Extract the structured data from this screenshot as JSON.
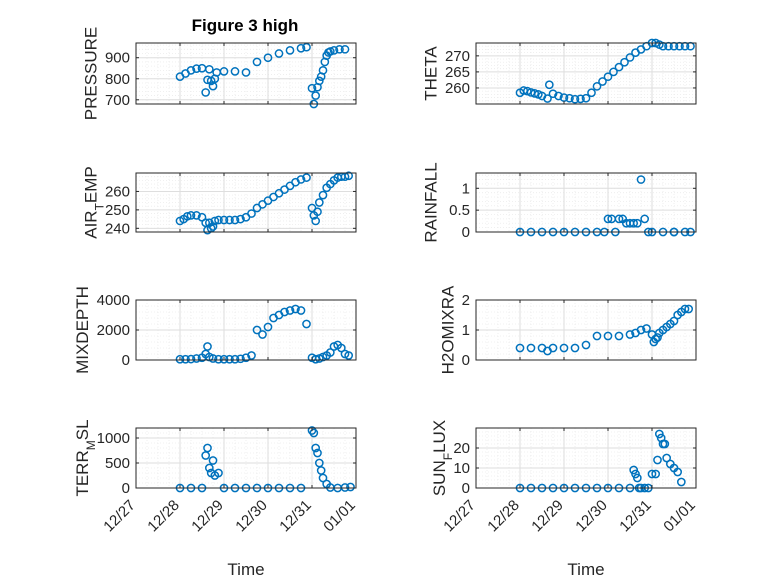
{
  "title": "Figure 3 high",
  "colors": {
    "marker": "#0072BD",
    "axis": "#262626",
    "grid": "#dedede",
    "minor_grid": "#ececec"
  },
  "chart_data": [
    {
      "type": "scatter",
      "marker": "o",
      "grid": true,
      "title": "Figure 3 high",
      "ylabel": "PRESSURE",
      "xlabel": "",
      "ylim": [
        680,
        970
      ],
      "yticks": [
        700,
        800,
        900
      ],
      "x": [
        "12/28 00:00",
        "12/28 03:00",
        "12/28 06:00",
        "12/28 09:00",
        "12/28 12:00",
        "12/28 14:00",
        "12/28 15:00",
        "12/28 16:00",
        "12/28 17:00",
        "12/28 18:00",
        "12/28 19:00",
        "12/28 20:00",
        "12/29 00:00",
        "12/29 06:00",
        "12/29 12:00",
        "12/29 18:00",
        "12/30 00:00",
        "12/30 06:00",
        "12/30 12:00",
        "12/30 18:00",
        "12/30 21:00",
        "12/31 00:00",
        "12/31 01:00",
        "12/31 02:00",
        "12/31 03:00",
        "12/31 04:00",
        "12/31 05:00",
        "12/31 06:00",
        "12/31 07:00",
        "12/31 08:00",
        "12/31 09:00",
        "12/31 10:00",
        "12/31 12:00",
        "12/31 15:00",
        "12/31 18:00"
      ],
      "y": [
        810,
        825,
        840,
        848,
        850,
        735,
        795,
        845,
        790,
        765,
        800,
        830,
        835,
        835,
        830,
        880,
        900,
        920,
        935,
        945,
        950,
        755,
        680,
        720,
        760,
        790,
        810,
        840,
        880,
        910,
        925,
        930,
        935,
        940,
        940
      ]
    },
    {
      "type": "scatter",
      "marker": "o",
      "grid": true,
      "title": "",
      "ylabel": "THETA",
      "xlabel": "",
      "ylim": [
        255,
        274
      ],
      "yticks": [
        260,
        265,
        270
      ],
      "x": [
        "12/28 00:00",
        "12/28 02:00",
        "12/28 04:00",
        "12/28 06:00",
        "12/28 08:00",
        "12/28 10:00",
        "12/28 12:00",
        "12/28 15:00",
        "12/28 16:00",
        "12/28 18:00",
        "12/28 21:00",
        "12/29 00:00",
        "12/29 03:00",
        "12/29 06:00",
        "12/29 09:00",
        "12/29 12:00",
        "12/29 15:00",
        "12/29 18:00",
        "12/29 21:00",
        "12/30 00:00",
        "12/30 03:00",
        "12/30 06:00",
        "12/30 09:00",
        "12/30 12:00",
        "12/30 15:00",
        "12/30 18:00",
        "12/30 21:00",
        "12/31 00:00",
        "12/31 02:00",
        "12/31 04:00",
        "12/31 06:00",
        "12/31 09:00",
        "12/31 12:00",
        "12/31 15:00",
        "12/31 18:00",
        "12/31 21:00"
      ],
      "y": [
        258.5,
        259.2,
        259,
        258.6,
        258.3,
        258,
        257.5,
        256.7,
        261,
        258.2,
        257.5,
        257,
        256.8,
        256.5,
        256.6,
        256.8,
        258.5,
        260.5,
        262,
        263.5,
        265,
        266.5,
        268,
        269.5,
        271,
        272,
        273,
        274,
        274,
        273.5,
        273,
        273,
        273,
        273,
        273,
        273
      ]
    },
    {
      "type": "scatter",
      "marker": "o",
      "grid": true,
      "title": "",
      "ylabel": "AIR_TEMP",
      "xlabel": "",
      "ylim": [
        238,
        270
      ],
      "yticks": [
        240,
        250,
        260
      ],
      "x": [
        "12/28 00:00",
        "12/28 02:00",
        "12/28 04:00",
        "12/28 06:00",
        "12/28 09:00",
        "12/28 12:00",
        "12/28 14:00",
        "12/28 15:00",
        "12/28 16:00",
        "12/28 17:00",
        "12/28 18:00",
        "12/28 19:00",
        "12/28 21:00",
        "12/29 00:00",
        "12/29 03:00",
        "12/29 06:00",
        "12/29 09:00",
        "12/29 12:00",
        "12/29 15:00",
        "12/29 18:00",
        "12/29 21:00",
        "12/30 00:00",
        "12/30 03:00",
        "12/30 06:00",
        "12/30 09:00",
        "12/30 12:00",
        "12/30 15:00",
        "12/30 18:00",
        "12/30 21:00",
        "12/31 00:00",
        "12/31 01:00",
        "12/31 02:00",
        "12/31 03:00",
        "12/31 04:00",
        "12/31 06:00",
        "12/31 08:00",
        "12/31 10:00",
        "12/31 12:00",
        "12/31 14:00",
        "12/31 16:00",
        "12/31 18:00",
        "12/31 20:00"
      ],
      "y": [
        244,
        245,
        246.5,
        247,
        247,
        246,
        243,
        239,
        243,
        240,
        241,
        244,
        244.5,
        244.5,
        244.5,
        244.5,
        245,
        246,
        248,
        251,
        253,
        255,
        257,
        259,
        261,
        263,
        265,
        266.5,
        267.5,
        251,
        247,
        244,
        249,
        254,
        258,
        262,
        264,
        266,
        267.5,
        268,
        268,
        268.5
      ]
    },
    {
      "type": "scatter",
      "marker": "o",
      "grid": true,
      "title": "",
      "ylabel": "RAINFALL",
      "xlabel": "",
      "ylim": [
        0,
        1.35
      ],
      "yticks": [
        0,
        0.5,
        1
      ],
      "x": [
        "12/28 00:00",
        "12/28 06:00",
        "12/28 12:00",
        "12/28 18:00",
        "12/29 00:00",
        "12/29 06:00",
        "12/29 12:00",
        "12/29 18:00",
        "12/29 22:00",
        "12/30 00:00",
        "12/30 02:00",
        "12/30 04:00",
        "12/30 06:00",
        "12/30 08:00",
        "12/30 10:00",
        "12/30 12:00",
        "12/30 14:00",
        "12/30 16:00",
        "12/30 18:00",
        "12/30 20:00",
        "12/30 22:00",
        "12/31 00:00",
        "12/31 06:00",
        "12/31 12:00",
        "12/31 18:00",
        "12/31 21:00",
        "12/31 12:00"
      ],
      "y": [
        0,
        0,
        0,
        0,
        0,
        0,
        0,
        0,
        0,
        0.3,
        0.3,
        0,
        0.3,
        0.3,
        0.2,
        0.2,
        0.2,
        0.2,
        1.2,
        0.3,
        0,
        0,
        0,
        0,
        0,
        0,
        0
      ]
    },
    {
      "type": "scatter",
      "marker": "o",
      "grid": true,
      "title": "",
      "ylabel": "MIXDEPTH",
      "xlabel": "",
      "ylim": [
        0,
        4000
      ],
      "yticks": [
        0,
        2000,
        4000
      ],
      "x": [
        "12/28 00:00",
        "12/28 03:00",
        "12/28 06:00",
        "12/28 09:00",
        "12/28 12:00",
        "12/28 14:00",
        "12/28 15:00",
        "12/28 16:00",
        "12/28 18:00",
        "12/28 21:00",
        "12/29 00:00",
        "12/29 03:00",
        "12/29 06:00",
        "12/29 09:00",
        "12/29 12:00",
        "12/29 15:00",
        "12/29 18:00",
        "12/29 21:00",
        "12/30 00:00",
        "12/30 03:00",
        "12/30 06:00",
        "12/30 09:00",
        "12/30 12:00",
        "12/30 15:00",
        "12/30 18:00",
        "12/30 21:00",
        "12/31 00:00",
        "12/31 02:00",
        "12/31 04:00",
        "12/31 06:00",
        "12/31 08:00",
        "12/31 10:00",
        "12/31 12:00",
        "12/31 14:00",
        "12/31 16:00",
        "12/31 18:00",
        "12/31 20:00"
      ],
      "y": [
        50,
        50,
        60,
        100,
        150,
        400,
        900,
        200,
        100,
        50,
        50,
        50,
        50,
        80,
        150,
        300,
        2000,
        1700,
        2200,
        2800,
        3000,
        3200,
        3300,
        3400,
        3300,
        2400,
        150,
        50,
        100,
        200,
        300,
        500,
        900,
        1000,
        800,
        400,
        300
      ]
    },
    {
      "type": "scatter",
      "marker": "o",
      "grid": true,
      "title": "",
      "ylabel": "H2OMIXRA",
      "xlabel": "",
      "ylim": [
        0,
        2
      ],
      "yticks": [
        0,
        1,
        2
      ],
      "x": [
        "12/28 00:00",
        "12/28 06:00",
        "12/28 12:00",
        "12/28 15:00",
        "12/28 18:00",
        "12/29 00:00",
        "12/29 06:00",
        "12/29 12:00",
        "12/29 18:00",
        "12/30 00:00",
        "12/30 06:00",
        "12/30 12:00",
        "12/30 15:00",
        "12/30 18:00",
        "12/30 21:00",
        "12/31 00:00",
        "12/31 01:00",
        "12/31 02:00",
        "12/31 03:00",
        "12/31 04:00",
        "12/31 06:00",
        "12/31 08:00",
        "12/31 10:00",
        "12/31 12:00",
        "12/31 14:00",
        "12/31 16:00",
        "12/31 18:00",
        "12/31 20:00"
      ],
      "y": [
        0.4,
        0.4,
        0.4,
        0.3,
        0.4,
        0.4,
        0.4,
        0.5,
        0.8,
        0.8,
        0.8,
        0.85,
        0.9,
        1.0,
        1.05,
        0.85,
        0.6,
        0.7,
        0.75,
        0.9,
        1.0,
        1.1,
        1.2,
        1.3,
        1.5,
        1.6,
        1.7,
        1.7
      ]
    },
    {
      "type": "scatter",
      "marker": "o",
      "grid": true,
      "title": "",
      "ylabel": "TERR_MSL",
      "xlabel": "Time",
      "ylim": [
        0,
        1200
      ],
      "yticks": [
        0,
        500,
        1000
      ],
      "xticks": [
        "12/27",
        "12/28",
        "12/29",
        "12/30",
        "12/31",
        "01/01"
      ],
      "x": [
        "12/28 00:00",
        "12/28 06:00",
        "12/28 12:00",
        "12/28 14:00",
        "12/28 15:00",
        "12/28 16:00",
        "12/28 17:00",
        "12/28 18:00",
        "12/28 19:00",
        "12/28 21:00",
        "12/29 00:00",
        "12/29 06:00",
        "12/29 12:00",
        "12/29 18:00",
        "12/30 00:00",
        "12/30 06:00",
        "12/30 12:00",
        "12/30 18:00",
        "12/31 00:00",
        "12/31 01:00",
        "12/31 02:00",
        "12/31 03:00",
        "12/31 04:00",
        "12/31 05:00",
        "12/31 06:00",
        "12/31 08:00",
        "12/31 10:00",
        "12/31 14:00",
        "12/31 18:00",
        "12/31 21:00"
      ],
      "y": [
        0,
        0,
        0,
        650,
        800,
        400,
        300,
        550,
        250,
        300,
        0,
        0,
        0,
        0,
        0,
        0,
        0,
        0,
        1150,
        1100,
        800,
        700,
        500,
        350,
        200,
        80,
        10,
        0,
        10,
        20
      ]
    },
    {
      "type": "scatter",
      "marker": "o",
      "grid": true,
      "title": "",
      "ylabel": "SUN_FLUX",
      "xlabel": "Time",
      "ylim": [
        0,
        30
      ],
      "yticks": [
        0,
        10,
        20
      ],
      "xticks": [
        "12/27",
        "12/28",
        "12/29",
        "12/30",
        "12/31",
        "01/01"
      ],
      "x": [
        "12/28 00:00",
        "12/28 06:00",
        "12/28 12:00",
        "12/28 18:00",
        "12/29 00:00",
        "12/29 06:00",
        "12/29 12:00",
        "12/29 18:00",
        "12/30 00:00",
        "12/30 06:00",
        "12/30 12:00",
        "12/30 14:00",
        "12/30 15:00",
        "12/30 16:00",
        "12/30 17:00",
        "12/30 18:00",
        "12/30 20:00",
        "12/30 22:00",
        "12/31 00:00",
        "12/31 02:00",
        "12/31 03:00",
        "12/31 04:00",
        "12/31 05:00",
        "12/31 06:00",
        "12/31 07:00",
        "12/31 08:00",
        "12/31 10:00",
        "12/31 12:00",
        "12/31 14:00",
        "12/31 16:00"
      ],
      "y": [
        0,
        0,
        0,
        0,
        0,
        0,
        0,
        0,
        0,
        0,
        0,
        9,
        7,
        5,
        0,
        0,
        0,
        0,
        7,
        7,
        14,
        27,
        25,
        22,
        22,
        15,
        12,
        10,
        8,
        3
      ]
    }
  ]
}
